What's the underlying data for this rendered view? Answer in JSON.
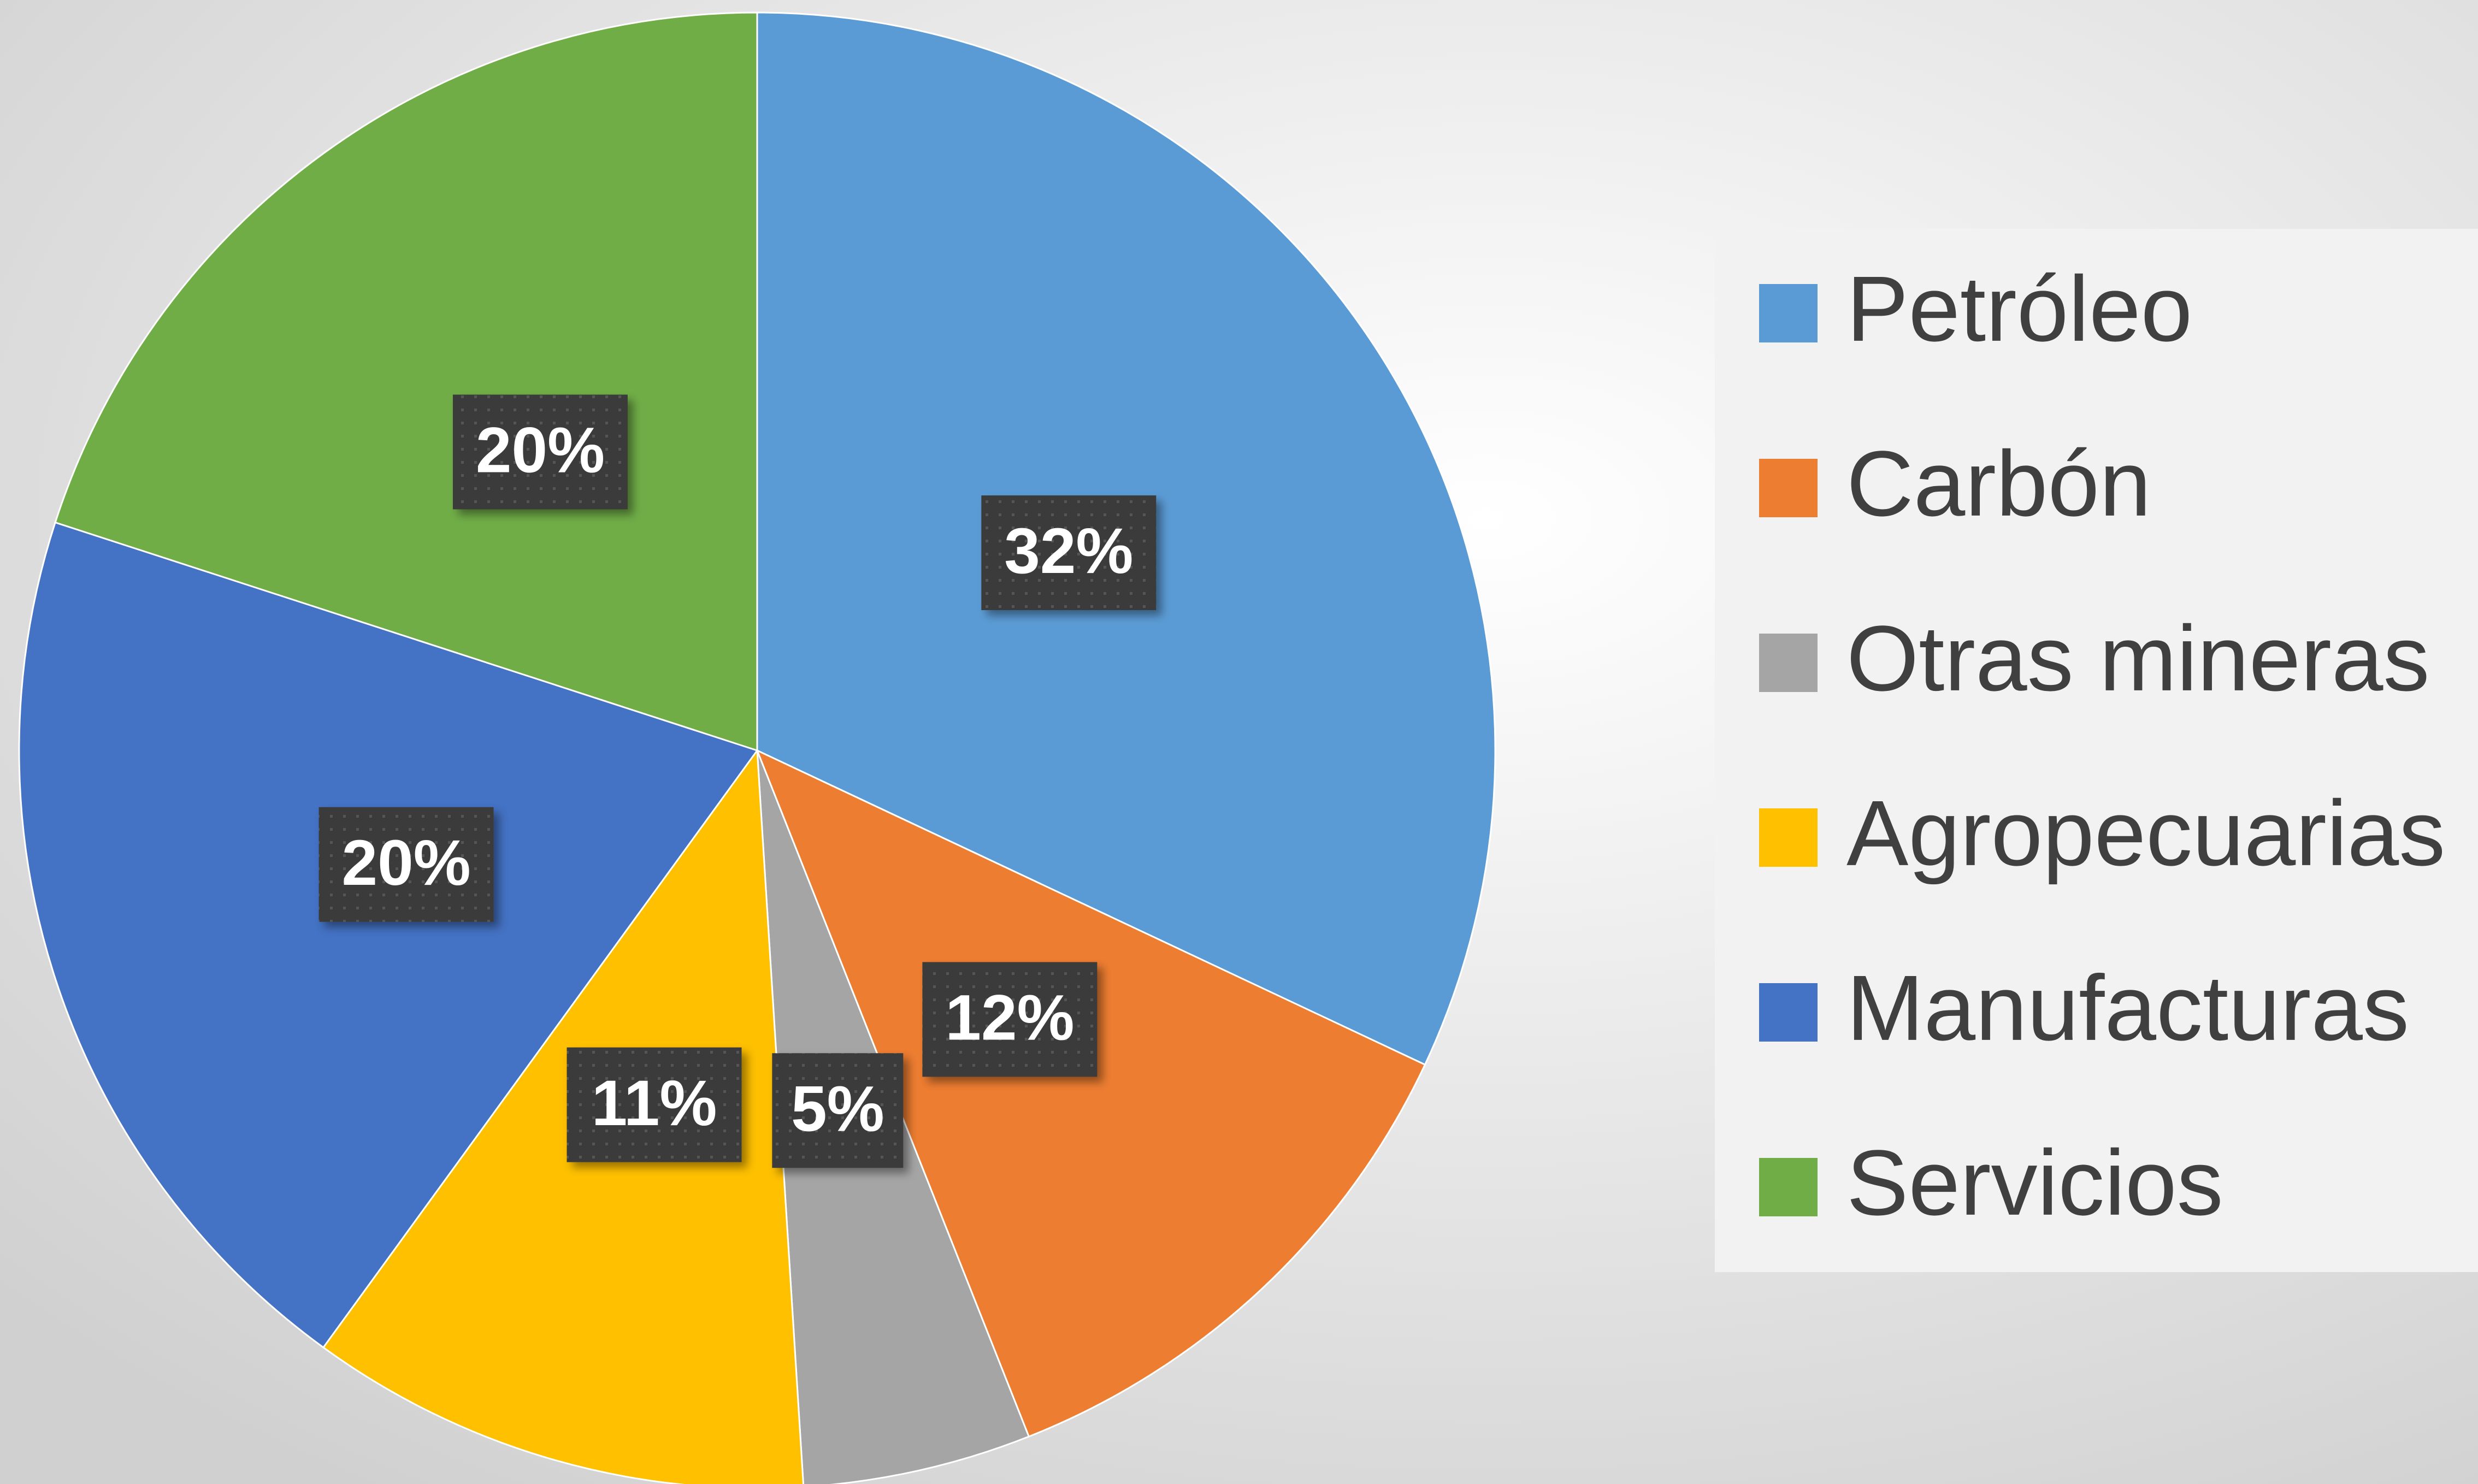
{
  "chart_data": {
    "type": "pie",
    "categories": [
      "Petróleo",
      "Carbón",
      "Otras mineras",
      "Agropecuarias",
      "Manufacturas",
      "Servicios"
    ],
    "values": [
      32,
      12,
      5,
      11,
      20,
      20
    ],
    "value_labels": [
      "32%",
      "12%",
      "5%",
      "11%",
      "20%",
      "20%"
    ],
    "colors": [
      "#5b9bd5",
      "#ed7d31",
      "#a5a5a5",
      "#ffc000",
      "#4472c4",
      "#70ad47"
    ],
    "legend": "right"
  }
}
